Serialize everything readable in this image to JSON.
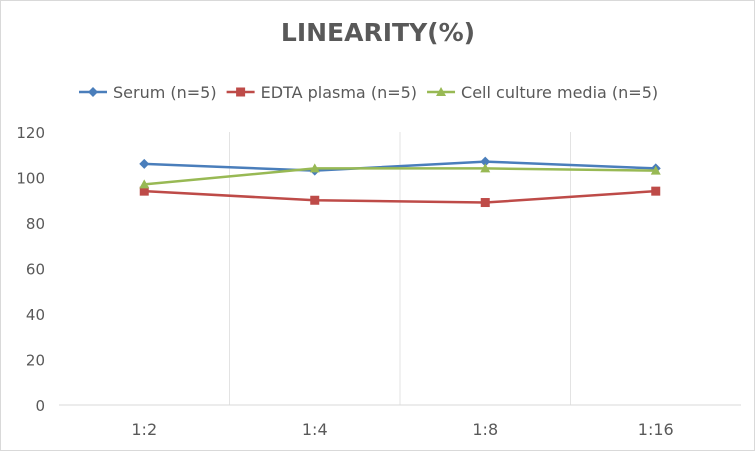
{
  "chart_data": {
    "type": "line",
    "title": "LINEARITY(%)",
    "categories": [
      "1:2",
      "1:4",
      "1:8",
      "1:16"
    ],
    "ylim": [
      0,
      120
    ],
    "yticks": [
      0,
      20,
      40,
      60,
      80,
      100,
      120
    ],
    "grid": "vertical",
    "legend": "top",
    "series": [
      {
        "name": "Serum (n=5)",
        "values": [
          106,
          103,
          107,
          104
        ],
        "color": "#4a7ebb",
        "marker": "diamond"
      },
      {
        "name": "EDTA plasma (n=5)",
        "values": [
          94,
          90,
          89,
          94
        ],
        "color": "#be4b48",
        "marker": "square"
      },
      {
        "name": "Cell culture media (n=5)",
        "values": [
          97,
          104,
          104,
          103
        ],
        "color": "#98b954",
        "marker": "triangle"
      }
    ]
  }
}
